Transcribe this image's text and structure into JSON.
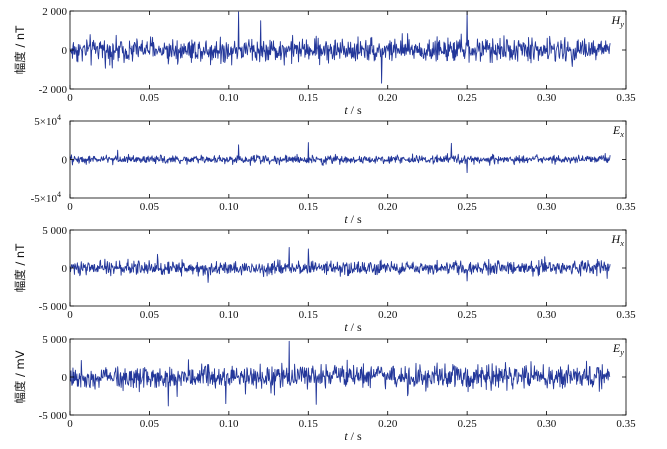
{
  "chart_data": [
    {
      "type": "line",
      "channel": "H",
      "channel_sub": "y",
      "ylabel": "幅度 / nT",
      "xlabel_var": "t",
      "xlabel_unit": " / s",
      "xlim": [
        0,
        0.35
      ],
      "ylim": [
        -2000,
        2000
      ],
      "x_ticks": [
        "0",
        "0.05",
        "0.10",
        "0.15",
        "0.20",
        "0.25",
        "0.30",
        "0.35"
      ],
      "y_ticks": [
        {
          "value": 2000,
          "label": "2 000"
        },
        {
          "value": 0,
          "label": "0"
        },
        {
          "value": -2000,
          "label": "-2 000"
        }
      ],
      "signal": {
        "x_start": 0,
        "x_end": 0.34,
        "typical_amplitude": 700,
        "peak_amplitude": 1950,
        "peaks": [
          [
            0.106,
            1950
          ],
          [
            0.25,
            1950
          ],
          [
            0.196,
            -1700
          ],
          [
            0.12,
            1500
          ]
        ]
      },
      "series_color": "#23379a"
    },
    {
      "type": "line",
      "channel": "E",
      "channel_sub": "x",
      "ylabel": "",
      "xlabel_var": "t",
      "xlabel_unit": " / s",
      "xlim": [
        0,
        0.35
      ],
      "ylim": [
        -50000,
        50000
      ],
      "x_ticks": [
        "0",
        "0.05",
        "0.10",
        "0.15",
        "0.20",
        "0.25",
        "0.30",
        "0.35"
      ],
      "y_ticks": [
        {
          "value": 50000,
          "label": "5×10",
          "exp": "4"
        },
        {
          "value": 0,
          "label": "0"
        },
        {
          "value": -50000,
          "label": "-5×10",
          "exp": "4"
        }
      ],
      "signal": {
        "x_start": 0,
        "x_end": 0.34,
        "typical_amplitude": 6000,
        "peak_amplitude": 22000,
        "peaks": [
          [
            0.106,
            19000
          ],
          [
            0.15,
            22000
          ],
          [
            0.24,
            21000
          ],
          [
            0.25,
            -17000
          ],
          [
            0.03,
            12000
          ]
        ]
      },
      "series_color": "#23379a"
    },
    {
      "type": "line",
      "channel": "H",
      "channel_sub": "x",
      "ylabel": "幅度 / nT",
      "xlabel_var": "t",
      "xlabel_unit": " / s",
      "xlim": [
        0,
        0.35
      ],
      "ylim": [
        -5000,
        5000
      ],
      "x_ticks": [
        "0",
        "0.05",
        "0.10",
        "0.15",
        "0.20",
        "0.25",
        "0.30",
        "0.35"
      ],
      "y_ticks": [
        {
          "value": 5000,
          "label": "5 000"
        },
        {
          "value": 0,
          "label": "0"
        },
        {
          "value": -5000,
          "label": "-5 000"
        }
      ],
      "signal": {
        "x_start": 0,
        "x_end": 0.34,
        "typical_amplitude": 1000,
        "peak_amplitude": 2700,
        "peaks": [
          [
            0.138,
            2700
          ],
          [
            0.15,
            2500
          ],
          [
            0.055,
            1800
          ],
          [
            0.087,
            -1900
          ],
          [
            0.25,
            -1700
          ]
        ]
      },
      "series_color": "#23379a"
    },
    {
      "type": "line",
      "channel": "E",
      "channel_sub": "y",
      "ylabel": "幅度 / mV",
      "xlabel_var": "t",
      "xlabel_unit": " / s",
      "xlim": [
        0,
        0.35
      ],
      "ylim": [
        -5000,
        5000
      ],
      "x_ticks": [
        "0",
        "0.05",
        "0.10",
        "0.15",
        "0.20",
        "0.25",
        "0.30",
        "0.35"
      ],
      "y_ticks": [
        {
          "value": 5000,
          "label": "5 000"
        },
        {
          "value": 0,
          "label": "0"
        },
        {
          "value": -5000,
          "label": "-5 000"
        }
      ],
      "signal": {
        "x_start": 0,
        "x_end": 0.34,
        "typical_amplitude": 1800,
        "peak_amplitude": 4700,
        "peaks": [
          [
            0.138,
            4700
          ],
          [
            0.062,
            -3800
          ],
          [
            0.098,
            -3500
          ],
          [
            0.155,
            -3600
          ]
        ]
      },
      "series_color": "#23379a"
    }
  ]
}
